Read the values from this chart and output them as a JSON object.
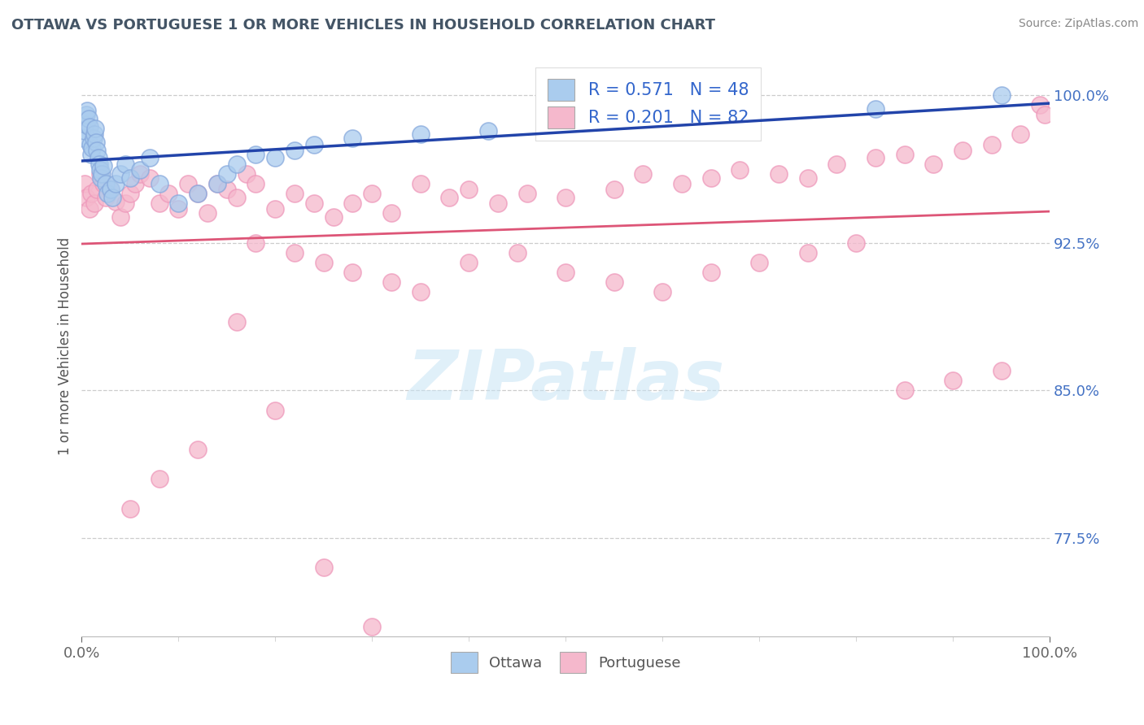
{
  "title": "OTTAWA VS PORTUGUESE 1 OR MORE VEHICLES IN HOUSEHOLD CORRELATION CHART",
  "source": "Source: ZipAtlas.com",
  "ylabel": "1 or more Vehicles in Household",
  "xlim": [
    0,
    100
  ],
  "ylim": [
    72.5,
    102
  ],
  "yticks": [
    77.5,
    85.0,
    92.5,
    100.0
  ],
  "ytick_labels": [
    "77.5%",
    "85.0%",
    "92.5%",
    "100.0%"
  ],
  "xtick_labels": [
    "0.0%",
    "100.0%"
  ],
  "ottawa_color": "#aaccee",
  "ottawa_edge": "#88aadd",
  "portuguese_color": "#f5b8cc",
  "portuguese_edge": "#ee99bb",
  "ottawa_line_color": "#2244aa",
  "portuguese_line_color": "#dd5577",
  "legend_label1": "R = 0.571   N = 48",
  "legend_label2": "R = 0.201   N = 82",
  "watermark": "ZIPatlas",
  "watermark_color": "#c8e4f5",
  "ottawa_x": [
    0.2,
    0.3,
    0.4,
    0.5,
    0.6,
    0.7,
    0.8,
    0.9,
    1.0,
    1.1,
    1.2,
    1.3,
    1.4,
    1.5,
    1.6,
    1.7,
    1.8,
    1.9,
    2.0,
    2.1,
    2.2,
    2.5,
    2.7,
    3.0,
    3.2,
    3.5,
    4.0,
    4.5,
    5.0,
    6.0,
    7.0,
    8.0,
    10.0,
    12.0,
    14.0,
    15.0,
    16.0,
    18.0,
    20.0,
    22.0,
    24.0,
    28.0,
    35.0,
    42.0,
    55.0,
    68.0,
    82.0,
    95.0
  ],
  "ottawa_y": [
    97.8,
    98.2,
    98.5,
    99.0,
    99.2,
    98.8,
    98.4,
    97.5,
    97.0,
    97.3,
    97.8,
    98.0,
    98.3,
    97.6,
    97.2,
    96.8,
    96.5,
    96.2,
    95.8,
    96.0,
    96.4,
    95.5,
    95.0,
    95.2,
    94.8,
    95.5,
    96.0,
    96.5,
    95.8,
    96.2,
    96.8,
    95.5,
    94.5,
    95.0,
    95.5,
    96.0,
    96.5,
    97.0,
    96.8,
    97.2,
    97.5,
    97.8,
    98.0,
    98.2,
    98.5,
    99.0,
    99.3,
    100.0
  ],
  "portuguese_x": [
    0.3,
    0.5,
    0.8,
    1.0,
    1.3,
    1.6,
    1.9,
    2.2,
    2.5,
    3.0,
    3.5,
    4.0,
    4.5,
    5.0,
    5.5,
    6.0,
    7.0,
    8.0,
    9.0,
    10.0,
    11.0,
    12.0,
    13.0,
    14.0,
    15.0,
    16.0,
    17.0,
    18.0,
    20.0,
    22.0,
    24.0,
    26.0,
    28.0,
    30.0,
    32.0,
    35.0,
    38.0,
    40.0,
    43.0,
    46.0,
    50.0,
    55.0,
    58.0,
    62.0,
    65.0,
    68.0,
    72.0,
    75.0,
    78.0,
    82.0,
    85.0,
    88.0,
    91.0,
    94.0,
    97.0,
    99.0,
    18.0,
    22.0,
    25.0,
    28.0,
    32.0,
    35.0,
    40.0,
    45.0,
    50.0,
    55.0,
    60.0,
    65.0,
    70.0,
    75.0,
    80.0,
    85.0,
    90.0,
    95.0,
    99.5,
    5.0,
    8.0,
    12.0,
    16.0,
    20.0,
    25.0,
    30.0
  ],
  "portuguese_y": [
    95.5,
    94.8,
    94.2,
    95.0,
    94.5,
    95.2,
    96.0,
    95.5,
    94.8,
    95.2,
    94.6,
    93.8,
    94.5,
    95.0,
    95.5,
    96.0,
    95.8,
    94.5,
    95.0,
    94.2,
    95.5,
    95.0,
    94.0,
    95.5,
    95.2,
    94.8,
    96.0,
    95.5,
    94.2,
    95.0,
    94.5,
    93.8,
    94.5,
    95.0,
    94.0,
    95.5,
    94.8,
    95.2,
    94.5,
    95.0,
    94.8,
    95.2,
    96.0,
    95.5,
    95.8,
    96.2,
    96.0,
    95.8,
    96.5,
    96.8,
    97.0,
    96.5,
    97.2,
    97.5,
    98.0,
    99.5,
    92.5,
    92.0,
    91.5,
    91.0,
    90.5,
    90.0,
    91.5,
    92.0,
    91.0,
    90.5,
    90.0,
    91.0,
    91.5,
    92.0,
    92.5,
    85.0,
    85.5,
    86.0,
    99.0,
    79.0,
    80.5,
    82.0,
    88.5,
    84.0,
    76.0,
    73.0
  ]
}
